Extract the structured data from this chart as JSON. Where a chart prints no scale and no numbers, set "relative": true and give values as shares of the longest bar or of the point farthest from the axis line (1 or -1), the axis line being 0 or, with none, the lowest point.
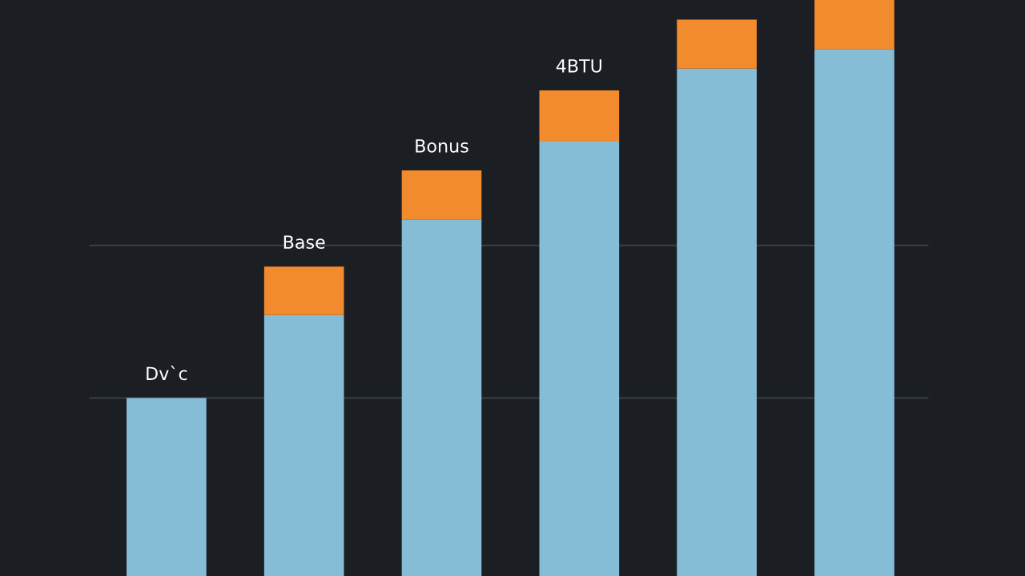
{
  "chart_data": {
    "type": "bar",
    "stacked": true,
    "relative": true,
    "categories": [
      null,
      null,
      null,
      null,
      null,
      null
    ],
    "series": [
      {
        "color": "#86bdd6",
        "values": [
          0.309,
          0.453,
          0.619,
          0.754,
          0.881,
          0.915
        ]
      },
      {
        "color": "#f28a2e",
        "values": [
          null,
          0.084,
          0.085,
          0.089,
          0.085,
          0.085
        ]
      }
    ],
    "annotations": [
      "Dv`c",
      "Base",
      "Bonus",
      "4BTU"
    ],
    "ref_lines": [
      {
        "axis": "y",
        "value": 0.309,
        "color": "#3a3f46"
      },
      {
        "axis": "y",
        "value": 0.574,
        "color": "#3a3f46"
      }
    ]
  }
}
